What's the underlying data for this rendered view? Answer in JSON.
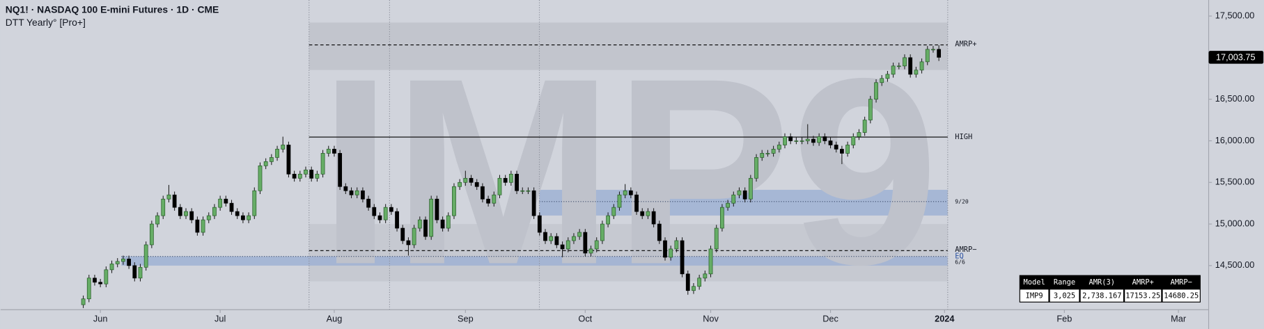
{
  "chart_data": {
    "type": "candlestick",
    "title": "NQ1! · NASDAQ 100 E-mini Futures · 1D · CME",
    "subtitle": "DTT Yearly° [Pro+]",
    "watermark": "IMP9",
    "up_color": "#66ad66",
    "down_color": "#000000",
    "grid": false,
    "ylim": [
      13970,
      17693
    ],
    "yticks": [
      {
        "value": 14500,
        "label": "14,500.00"
      },
      {
        "value": 15000,
        "label": "15,000.00"
      },
      {
        "value": 15500,
        "label": "15,500.00"
      },
      {
        "value": 16000,
        "label": "16,000.00"
      },
      {
        "value": 16500,
        "label": "16,500.00"
      },
      {
        "value": 17000,
        "label": "17,000.00"
      },
      {
        "value": 17500,
        "label": "17,500.00"
      }
    ],
    "xlim": [
      -14.5,
      197.3
    ],
    "xticks": [
      {
        "value": 3,
        "label": "Jun"
      },
      {
        "value": 24,
        "label": "Jul"
      },
      {
        "value": 44,
        "label": "Aug"
      },
      {
        "value": 67,
        "label": "Sep"
      },
      {
        "value": 88,
        "label": "Oct"
      },
      {
        "value": 110,
        "label": "Nov"
      },
      {
        "value": 131,
        "label": "Dec"
      },
      {
        "value": 151,
        "label": "2024"
      },
      {
        "value": 172,
        "label": "Feb"
      },
      {
        "value": 192,
        "label": "Mar"
      }
    ],
    "last_price": {
      "value": 17003.75,
      "label": "17,003.75"
    },
    "zones": [
      {
        "from": 16852,
        "to": 17422,
        "color": "#bfc2ca"
      },
      {
        "from": 14310,
        "to": 15000,
        "color": "#c4c7cf"
      },
      {
        "from": 15102,
        "to": 15411,
        "color": "#9fb1d3"
      },
      {
        "from": 14500,
        "to": 14610,
        "color": "#9fb1d3"
      }
    ],
    "levels": [
      {
        "label": "AMRP+",
        "value": 17153.25,
        "style": "dashed"
      },
      {
        "label": "HIGH",
        "value": 16045,
        "style": "solid"
      },
      {
        "label": "9/20",
        "value": 15270,
        "style": "dotted"
      },
      {
        "label": "AMRP−",
        "value": 14680.25,
        "style": "dashed"
      },
      {
        "label": "EQ",
        "value": 14610,
        "style": "dotted"
      },
      {
        "label": "6/6",
        "value": 14540,
        "style": "none"
      }
    ],
    "table": {
      "header": [
        "Model",
        "Range",
        "AMR(3)",
        "AMRP+",
        "AMRP−"
      ],
      "rows": [
        [
          "IMP9",
          "3,025",
          "2,738.167",
          "17153.25",
          "14680.25"
        ]
      ]
    },
    "ohlc": [
      [
        14030,
        14140,
        13990,
        14100
      ],
      [
        14100,
        14390,
        14060,
        14350
      ],
      [
        14350,
        14390,
        14260,
        14300
      ],
      [
        14300,
        14340,
        14240,
        14280
      ],
      [
        14280,
        14490,
        14240,
        14450
      ],
      [
        14450,
        14560,
        14410,
        14520
      ],
      [
        14520,
        14590,
        14480,
        14550
      ],
      [
        14550,
        14620,
        14510,
        14580
      ],
      [
        14580,
        14620,
        14460,
        14500
      ],
      [
        14500,
        14540,
        14310,
        14350
      ],
      [
        14350,
        14520,
        14310,
        14480
      ],
      [
        14480,
        14790,
        14440,
        14750
      ],
      [
        14750,
        15040,
        14710,
        15000
      ],
      [
        15000,
        15140,
        14960,
        15100
      ],
      [
        15100,
        15340,
        15060,
        15300
      ],
      [
        15300,
        15470,
        15260,
        15350
      ],
      [
        15350,
        15390,
        15160,
        15200
      ],
      [
        15200,
        15240,
        15060,
        15100
      ],
      [
        15100,
        15190,
        15060,
        15150
      ],
      [
        15150,
        15190,
        15010,
        15050
      ],
      [
        15050,
        15090,
        14860,
        14900
      ],
      [
        14900,
        15090,
        14860,
        15050
      ],
      [
        15050,
        15140,
        15010,
        15100
      ],
      [
        15100,
        15240,
        15060,
        15200
      ],
      [
        15200,
        15340,
        15160,
        15300
      ],
      [
        15300,
        15340,
        15210,
        15250
      ],
      [
        15250,
        15290,
        15110,
        15150
      ],
      [
        15150,
        15190,
        15060,
        15100
      ],
      [
        15100,
        15140,
        15010,
        15050
      ],
      [
        15050,
        15140,
        15010,
        15100
      ],
      [
        15100,
        15440,
        15060,
        15400
      ],
      [
        15400,
        15740,
        15360,
        15700
      ],
      [
        15700,
        15790,
        15660,
        15750
      ],
      [
        15750,
        15840,
        15710,
        15800
      ],
      [
        15800,
        15940,
        15760,
        15900
      ],
      [
        15900,
        16050,
        15860,
        15950
      ],
      [
        15950,
        15990,
        15560,
        15600
      ],
      [
        15600,
        15640,
        15510,
        15550
      ],
      [
        15550,
        15640,
        15510,
        15600
      ],
      [
        15600,
        15690,
        15560,
        15650
      ],
      [
        15650,
        15690,
        15510,
        15550
      ],
      [
        15550,
        15640,
        15510,
        15600
      ],
      [
        15600,
        15890,
        15560,
        15850
      ],
      [
        15850,
        15940,
        15810,
        15900
      ],
      [
        15900,
        15940,
        15810,
        15850
      ],
      [
        15850,
        15890,
        15410,
        15450
      ],
      [
        15450,
        15490,
        15360,
        15400
      ],
      [
        15400,
        15440,
        15310,
        15350
      ],
      [
        15350,
        15440,
        15310,
        15400
      ],
      [
        15400,
        15440,
        15260,
        15300
      ],
      [
        15300,
        15340,
        15160,
        15200
      ],
      [
        15200,
        15240,
        15060,
        15100
      ],
      [
        15100,
        15140,
        15010,
        15050
      ],
      [
        15050,
        15240,
        15010,
        15200
      ],
      [
        15200,
        15240,
        15110,
        15150
      ],
      [
        15150,
        15190,
        14910,
        14950
      ],
      [
        14950,
        14990,
        14760,
        14800
      ],
      [
        14800,
        14840,
        14620,
        14750
      ],
      [
        14750,
        14990,
        14710,
        14950
      ],
      [
        14950,
        15090,
        14910,
        15050
      ],
      [
        15050,
        15090,
        14810,
        14850
      ],
      [
        14850,
        15340,
        14810,
        15300
      ],
      [
        15300,
        15340,
        15010,
        15050
      ],
      [
        15050,
        15090,
        14910,
        14950
      ],
      [
        14950,
        15140,
        14910,
        15100
      ],
      [
        15100,
        15490,
        15060,
        15450
      ],
      [
        15450,
        15540,
        15410,
        15500
      ],
      [
        15500,
        15640,
        15460,
        15550
      ],
      [
        15550,
        15590,
        15460,
        15500
      ],
      [
        15500,
        15540,
        15410,
        15450
      ],
      [
        15450,
        15490,
        15260,
        15300
      ],
      [
        15300,
        15340,
        15210,
        15250
      ],
      [
        15250,
        15390,
        15210,
        15350
      ],
      [
        15350,
        15590,
        15310,
        15550
      ],
      [
        15550,
        15590,
        15460,
        15500
      ],
      [
        15500,
        15640,
        15460,
        15600
      ],
      [
        15600,
        15640,
        15360,
        15400
      ],
      [
        15400,
        15440,
        15360,
        15400
      ],
      [
        15400,
        15440,
        15360,
        15400
      ],
      [
        15400,
        15440,
        15060,
        15100
      ],
      [
        15100,
        15140,
        14860,
        14900
      ],
      [
        14900,
        14940,
        14760,
        14800
      ],
      [
        14800,
        14890,
        14760,
        14850
      ],
      [
        14850,
        14890,
        14710,
        14750
      ],
      [
        14750,
        14790,
        14600,
        14700
      ],
      [
        14700,
        14840,
        14660,
        14800
      ],
      [
        14800,
        14890,
        14760,
        14850
      ],
      [
        14850,
        14940,
        14810,
        14900
      ],
      [
        14900,
        14940,
        14610,
        14650
      ],
      [
        14650,
        14740,
        14610,
        14700
      ],
      [
        14700,
        14840,
        14660,
        14800
      ],
      [
        14800,
        15040,
        14760,
        15000
      ],
      [
        15000,
        15140,
        14960,
        15100
      ],
      [
        15100,
        15240,
        15060,
        15200
      ],
      [
        15200,
        15390,
        15160,
        15350
      ],
      [
        15350,
        15480,
        15310,
        15400
      ],
      [
        15400,
        15440,
        15310,
        15350
      ],
      [
        15350,
        15390,
        15110,
        15150
      ],
      [
        15150,
        15190,
        15060,
        15100
      ],
      [
        15100,
        15190,
        15060,
        15150
      ],
      [
        15150,
        15190,
        14960,
        15000
      ],
      [
        15000,
        15040,
        14760,
        14800
      ],
      [
        14800,
        14840,
        14560,
        14600
      ],
      [
        14600,
        14740,
        14560,
        14700
      ],
      [
        14700,
        14840,
        14660,
        14800
      ],
      [
        14800,
        14840,
        14360,
        14400
      ],
      [
        14400,
        14440,
        14150,
        14200
      ],
      [
        14200,
        14290,
        14160,
        14250
      ],
      [
        14250,
        14390,
        14210,
        14350
      ],
      [
        14350,
        14440,
        14310,
        14400
      ],
      [
        14400,
        14740,
        14360,
        14700
      ],
      [
        14700,
        14990,
        14660,
        14950
      ],
      [
        14950,
        15240,
        14910,
        15200
      ],
      [
        15200,
        15290,
        15160,
        15250
      ],
      [
        15250,
        15390,
        15210,
        15350
      ],
      [
        15350,
        15440,
        15310,
        15400
      ],
      [
        15400,
        15440,
        15260,
        15300
      ],
      [
        15300,
        15590,
        15260,
        15550
      ],
      [
        15550,
        15840,
        15510,
        15800
      ],
      [
        15800,
        15890,
        15760,
        15850
      ],
      [
        15850,
        15890,
        15810,
        15850
      ],
      [
        15850,
        15940,
        15810,
        15900
      ],
      [
        15900,
        15990,
        15860,
        15950
      ],
      [
        15950,
        16090,
        15910,
        16050
      ],
      [
        16050,
        16090,
        15960,
        16000
      ],
      [
        16000,
        16040,
        15960,
        16000
      ],
      [
        16000,
        16040,
        15960,
        16000
      ],
      [
        16000,
        16200,
        15960,
        16020
      ],
      [
        16020,
        16060,
        15940,
        15980
      ],
      [
        15980,
        16090,
        15940,
        16050
      ],
      [
        16050,
        16090,
        15960,
        16000
      ],
      [
        16000,
        16040,
        15910,
        15950
      ],
      [
        15950,
        15990,
        15860,
        15900
      ],
      [
        15900,
        15940,
        15720,
        15850
      ],
      [
        15850,
        15990,
        15810,
        15950
      ],
      [
        15950,
        16090,
        15910,
        16050
      ],
      [
        16050,
        16140,
        16010,
        16100
      ],
      [
        16100,
        16290,
        16060,
        16250
      ],
      [
        16250,
        16540,
        16210,
        16500
      ],
      [
        16500,
        16740,
        16460,
        16700
      ],
      [
        16700,
        16790,
        16660,
        16750
      ],
      [
        16750,
        16840,
        16710,
        16800
      ],
      [
        16800,
        16940,
        16760,
        16900
      ],
      [
        16900,
        16940,
        16860,
        16900
      ],
      [
        16900,
        17040,
        16860,
        17000
      ],
      [
        17000,
        17040,
        16760,
        16800
      ],
      [
        16800,
        16890,
        16760,
        16850
      ],
      [
        16850,
        16990,
        16810,
        16950
      ],
      [
        16950,
        17140,
        16910,
        17100
      ],
      [
        17100,
        17140,
        17060,
        17100
      ],
      [
        17100,
        17150,
        16960,
        17003.75
      ]
    ]
  }
}
